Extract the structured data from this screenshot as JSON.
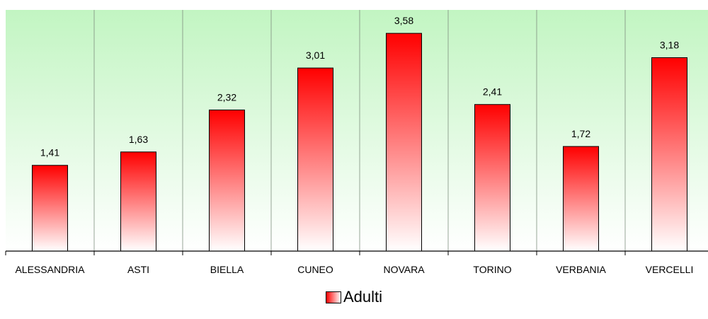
{
  "chart_data": {
    "type": "bar",
    "categories": [
      "ALESSANDRIA",
      "ASTI",
      "BIELLA",
      "CUNEO",
      "NOVARA",
      "TORINO",
      "VERBANIA",
      "VERCELLI"
    ],
    "series": [
      {
        "name": "Adulti",
        "values": [
          1.41,
          1.63,
          2.32,
          3.01,
          3.58,
          2.41,
          1.72,
          3.18
        ],
        "labels": [
          "1,41",
          "1,63",
          "2,32",
          "3,01",
          "3,58",
          "2,41",
          "1,72",
          "3,18"
        ]
      }
    ],
    "title": "",
    "xlabel": "",
    "ylabel": "",
    "ylim": [
      0,
      4
    ],
    "grid": "vertical category separators",
    "legend": {
      "position": "bottom",
      "entries": [
        "Adulti"
      ]
    },
    "colors": {
      "bar_top": "#ff0000",
      "bar_bottom": "#ffffff",
      "plot_bg_top": "#c2f5c2",
      "plot_bg_bottom": "#ffffff",
      "axis": "#000000"
    }
  }
}
